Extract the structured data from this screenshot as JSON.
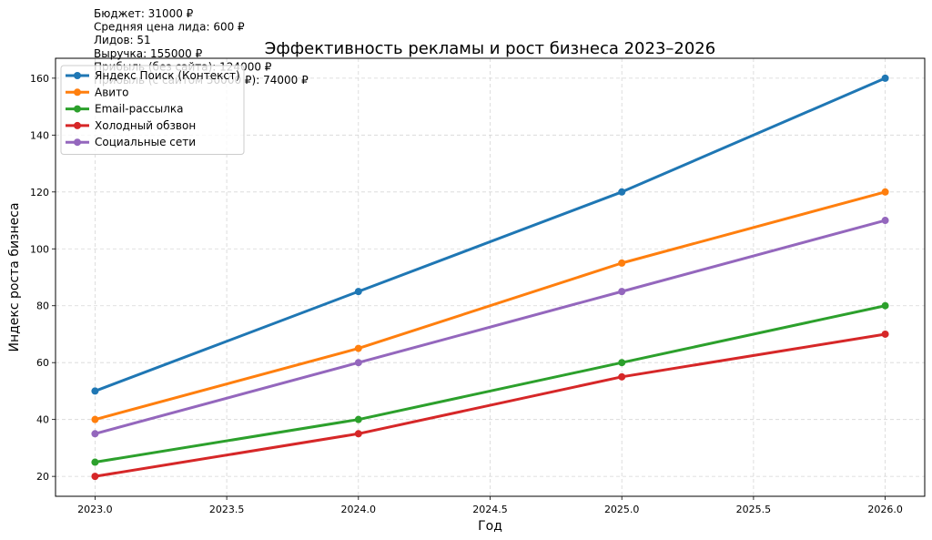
{
  "chart_data": {
    "type": "line",
    "title": "Эффективность рекламы и рост бизнеса 2023–2026",
    "xlabel": "Год",
    "ylabel": "Индекс роста бизнеса",
    "x": [
      2023,
      2024,
      2025,
      2026
    ],
    "xticks": [
      "2023.0",
      "2023.5",
      "2024.0",
      "2024.5",
      "2025.0",
      "2025.5",
      "2026.0"
    ],
    "yticks": [
      "20",
      "40",
      "60",
      "80",
      "100",
      "120",
      "140",
      "160"
    ],
    "xlim": [
      2022.85,
      2026.15
    ],
    "ylim": [
      13,
      167
    ],
    "grid": true,
    "legend_position": "top-left",
    "series": [
      {
        "name": "Яндекс Поиск (Контекст)",
        "values": [
          50,
          85,
          120,
          160
        ],
        "color": "#1f77b4"
      },
      {
        "name": "Авито",
        "values": [
          40,
          65,
          95,
          120
        ],
        "color": "#ff7f0e"
      },
      {
        "name": "Email-рассылка",
        "values": [
          25,
          40,
          60,
          80
        ],
        "color": "#2ca02c"
      },
      {
        "name": "Холодный обзвон",
        "values": [
          20,
          35,
          55,
          70
        ],
        "color": "#d62728"
      },
      {
        "name": "Социальные сети",
        "values": [
          35,
          60,
          85,
          110
        ],
        "color": "#9467bd"
      }
    ],
    "annotations": [
      "Бюджет: 31000 ₽",
      "Средняя цена лида: 600 ₽",
      "Лидов: 51",
      "Выручка: 155000 ₽",
      "Прибыль (без сайта): 124000 ₽",
      "Прибыль (с сайтом 50000 ₽): 74000 ₽"
    ]
  }
}
